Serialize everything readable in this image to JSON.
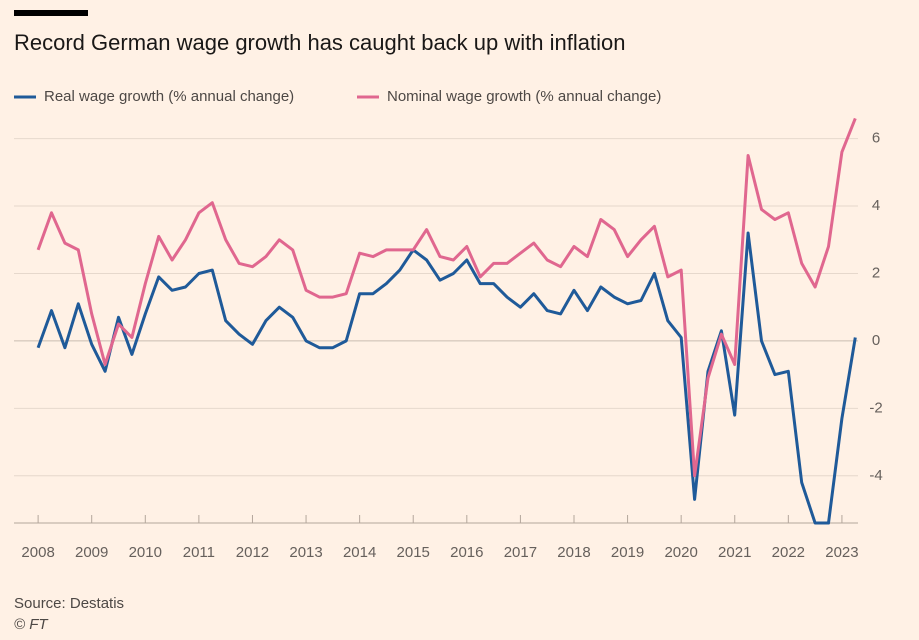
{
  "chart_data": {
    "type": "line",
    "title": "Record German wage growth has caught back up with inflation",
    "source": "Source: Destatis",
    "credit": "© FT",
    "x": [
      2008,
      2008.25,
      2008.5,
      2008.75,
      2009,
      2009.25,
      2009.5,
      2009.75,
      2010,
      2010.25,
      2010.5,
      2010.75,
      2011,
      2011.25,
      2011.5,
      2011.75,
      2012,
      2012.25,
      2012.5,
      2012.75,
      2013,
      2013.25,
      2013.5,
      2013.75,
      2014,
      2014.25,
      2014.5,
      2014.75,
      2015,
      2015.25,
      2015.5,
      2015.75,
      2016,
      2016.25,
      2016.5,
      2016.75,
      2017,
      2017.25,
      2017.5,
      2017.75,
      2018,
      2018.25,
      2018.5,
      2018.75,
      2019,
      2019.25,
      2019.5,
      2019.75,
      2020,
      2020.25,
      2020.5,
      2020.75,
      2021,
      2021.25,
      2021.5,
      2021.75,
      2022,
      2022.25,
      2022.5,
      2022.75,
      2023,
      2023.25
    ],
    "series": [
      {
        "name": "Real wage growth (% annual change)",
        "color": "#1f5a99",
        "values": [
          -0.2,
          0.9,
          -0.2,
          1.1,
          -0.1,
          -0.9,
          0.7,
          -0.4,
          0.8,
          1.9,
          1.5,
          1.6,
          2.0,
          2.1,
          0.6,
          0.2,
          -0.1,
          0.6,
          1.0,
          0.7,
          0.0,
          -0.2,
          -0.2,
          0.0,
          1.4,
          1.4,
          1.7,
          2.1,
          2.7,
          2.4,
          1.8,
          2.0,
          2.4,
          1.7,
          1.7,
          1.3,
          1.0,
          1.4,
          0.9,
          0.8,
          1.5,
          0.9,
          1.6,
          1.3,
          1.1,
          1.2,
          2.0,
          0.6,
          0.1,
          -4.7,
          -0.9,
          0.3,
          -2.2,
          3.2,
          0.0,
          -1.0,
          -0.9,
          -4.2,
          -5.4,
          -5.4,
          -2.3,
          0.1
        ]
      },
      {
        "name": "Nominal wage growth (% annual change)",
        "color": "#e0678f",
        "values": [
          2.7,
          3.8,
          2.9,
          2.7,
          0.8,
          -0.7,
          0.5,
          0.1,
          1.7,
          3.1,
          2.4,
          3.0,
          3.8,
          4.1,
          3.0,
          2.3,
          2.2,
          2.5,
          3.0,
          2.7,
          1.5,
          1.3,
          1.3,
          1.4,
          2.6,
          2.5,
          2.7,
          2.7,
          2.7,
          3.3,
          2.5,
          2.4,
          2.8,
          1.9,
          2.3,
          2.3,
          2.6,
          2.9,
          2.4,
          2.2,
          2.8,
          2.5,
          3.6,
          3.3,
          2.5,
          3.0,
          3.4,
          1.9,
          2.1,
          -4.0,
          -1.1,
          0.2,
          -0.7,
          5.5,
          3.9,
          3.6,
          3.8,
          2.3,
          1.6,
          2.8,
          5.6,
          6.6
        ]
      }
    ],
    "xlim": [
      2007.55,
      2023.3
    ],
    "xticks": [
      2008,
      2009,
      2010,
      2011,
      2012,
      2013,
      2014,
      2015,
      2016,
      2017,
      2018,
      2019,
      2020,
      2021,
      2022,
      2023
    ],
    "ylim": [
      -5.4,
      6.7
    ],
    "yticks": [
      -4,
      -2,
      0,
      2,
      4,
      6
    ],
    "grid": true
  }
}
